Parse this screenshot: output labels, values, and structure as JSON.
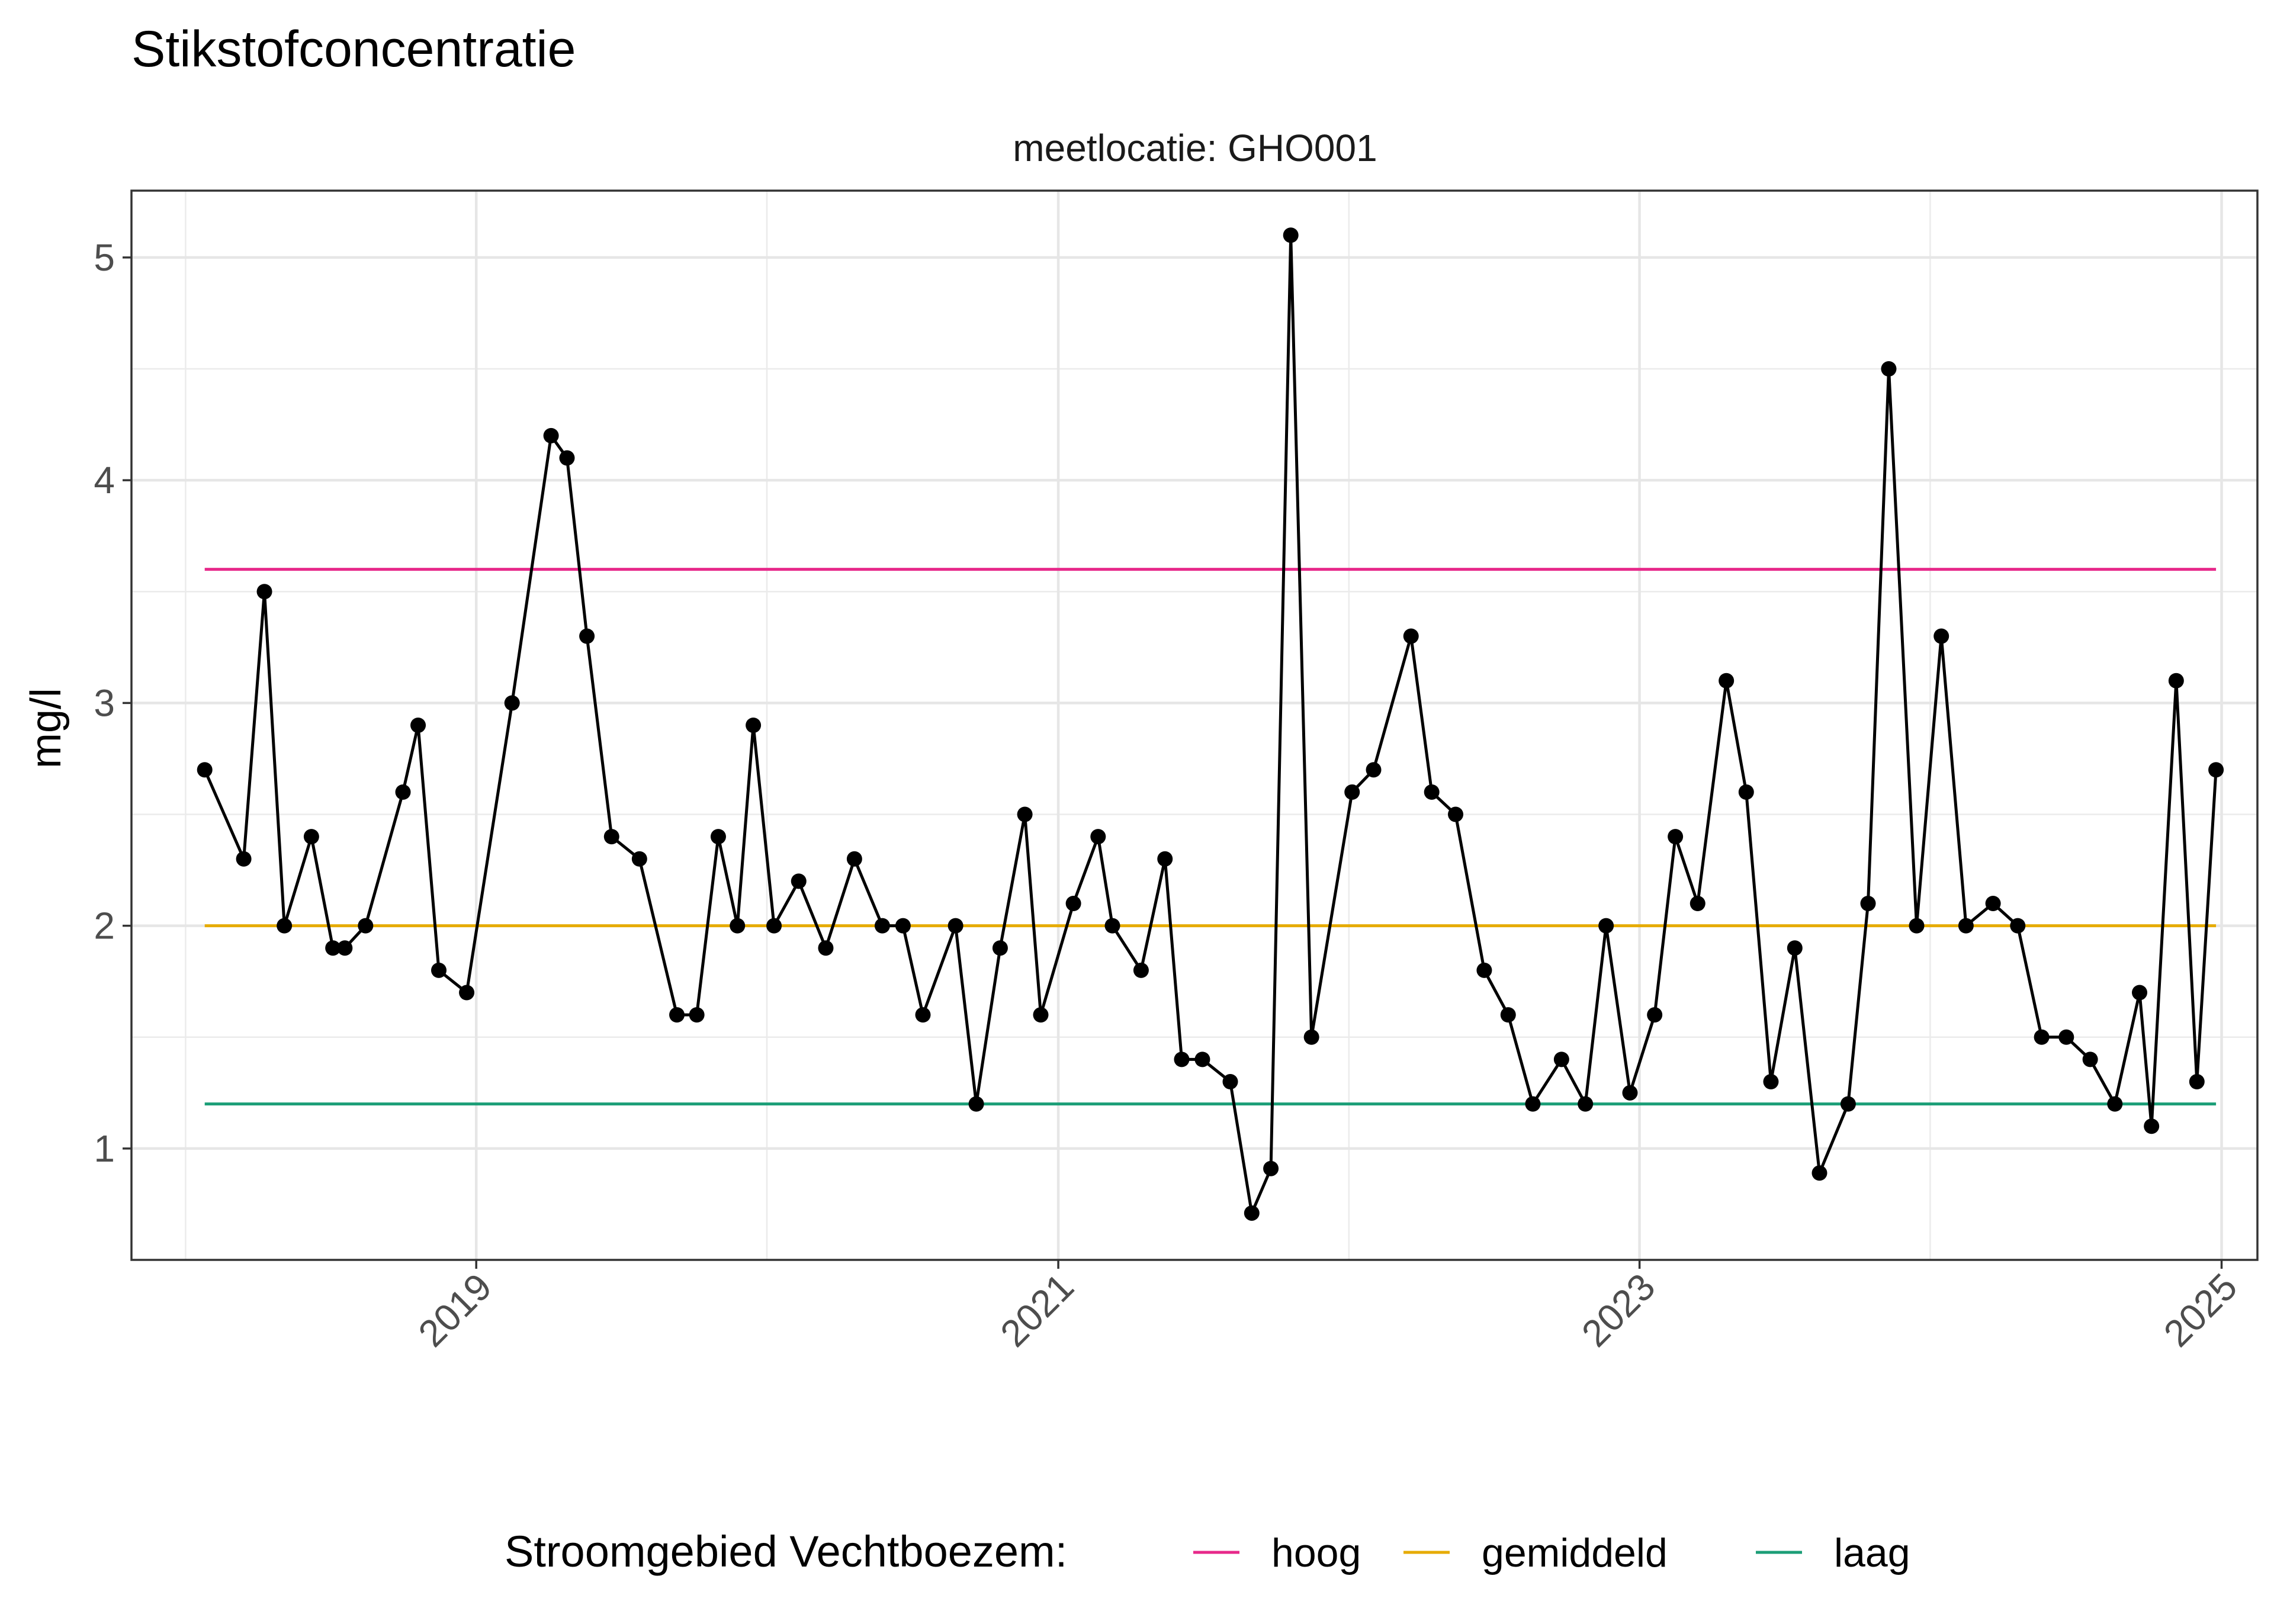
{
  "chart_data": {
    "type": "line",
    "title": "Stikstofconcentratie",
    "subtitle": "meetlocatie: GHO001",
    "xlabel": "",
    "ylabel": "mg/l",
    "x_ticks": [
      "2019",
      "2021",
      "2023",
      "2025"
    ],
    "y_ticks": [
      "1",
      "2",
      "3",
      "4",
      "5"
    ],
    "xlim": [
      "2017-10-25",
      "2025-02-15"
    ],
    "ylim": [
      0.5,
      5.3
    ],
    "grid": true,
    "legend_position": "bottom",
    "legend_title": "Stroomgebied Vechtboezem:",
    "series": [
      {
        "x": [
          "2018-01-25",
          "2018-03-15",
          "2018-04-10",
          "2018-05-05",
          "2018-06-08",
          "2018-07-05",
          "2018-07-20",
          "2018-08-15",
          "2018-10-01",
          "2018-10-20",
          "2018-11-15",
          "2018-12-20",
          "2019-02-15",
          "2019-04-05",
          "2019-04-25",
          "2019-05-20",
          "2019-06-20",
          "2019-07-25",
          "2019-09-10",
          "2019-10-05",
          "2019-11-01",
          "2019-11-25",
          "2019-12-15",
          "2020-01-10",
          "2020-02-10",
          "2020-03-15",
          "2020-04-20",
          "2020-05-25",
          "2020-06-20",
          "2020-07-15",
          "2020-08-25",
          "2020-09-20",
          "2020-10-20",
          "2020-11-20",
          "2020-12-10",
          "2021-01-20",
          "2021-02-20",
          "2021-03-10",
          "2021-04-15",
          "2021-05-15",
          "2021-06-05",
          "2021-07-01",
          "2021-08-05",
          "2021-09-01",
          "2021-09-25",
          "2021-10-20",
          "2021-11-15",
          "2022-01-05",
          "2022-02-01",
          "2022-03-20",
          "2022-04-15",
          "2022-05-15",
          "2022-06-20",
          "2022-07-20",
          "2022-08-20",
          "2022-09-25",
          "2022-10-25",
          "2022-11-20",
          "2022-12-20",
          "2023-01-20",
          "2023-02-15",
          "2023-03-15",
          "2023-04-20",
          "2023-05-15",
          "2023-06-15",
          "2023-07-15",
          "2023-08-15",
          "2023-09-20",
          "2023-10-15",
          "2023-11-10",
          "2023-12-15",
          "2024-01-15",
          "2024-02-15",
          "2024-03-20",
          "2024-04-20",
          "2024-05-20",
          "2024-06-20",
          "2024-07-20",
          "2024-08-20",
          "2024-09-20",
          "2024-10-05",
          "2024-11-05",
          "2024-12-01",
          "2024-12-25"
        ],
        "values": [
          2.7,
          2.3,
          3.5,
          2.0,
          2.4,
          1.9,
          1.9,
          2.0,
          2.6,
          2.9,
          1.8,
          1.7,
          3.0,
          4.2,
          4.1,
          3.3,
          2.4,
          2.3,
          1.6,
          1.6,
          2.4,
          2.0,
          2.9,
          2.0,
          2.2,
          1.9,
          2.3,
          2.0,
          2.0,
          1.6,
          2.0,
          1.2,
          1.9,
          2.5,
          1.6,
          2.1,
          2.4,
          2.0,
          1.8,
          2.3,
          1.4,
          1.4,
          1.3,
          0.71,
          0.91,
          5.1,
          1.5,
          2.6,
          2.7,
          3.3,
          2.6,
          2.5,
          1.8,
          1.6,
          1.2,
          1.4,
          1.2,
          2.0,
          1.25,
          1.6,
          2.4,
          2.1,
          3.1,
          2.6,
          1.3,
          1.9,
          0.89,
          1.2,
          2.1,
          4.5,
          2.0,
          3.3,
          2.0,
          2.1,
          2.0,
          1.5,
          1.5,
          1.4,
          1.2,
          1.7,
          1.1,
          3.1,
          1.3,
          2.7
        ],
        "color": "#000000"
      }
    ],
    "reference_lines": [
      {
        "name": "hoog",
        "value": 3.6,
        "color": "#E7298A"
      },
      {
        "name": "gemiddeld",
        "value": 2.0,
        "color": "#E6AB02"
      },
      {
        "name": "laag",
        "value": 1.2,
        "color": "#1B9E77"
      }
    ],
    "ref_x_range": [
      "2018-01-25",
      "2024-12-25"
    ]
  }
}
